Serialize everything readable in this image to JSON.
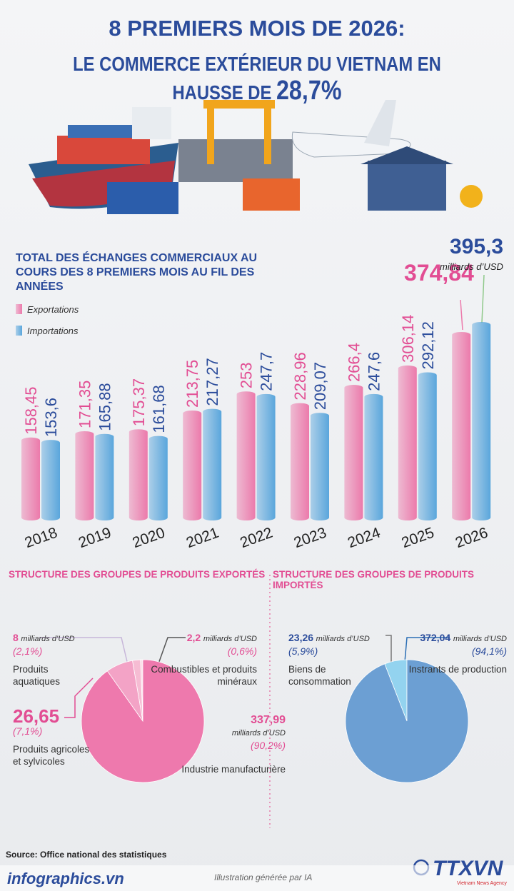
{
  "title": "8 PREMIERS MOIS DE 2026:",
  "subtitle": "LE COMMERCE EXTÉRIEUR DU VIETNAM EN HAUSSE DE",
  "highlight": "28,7%",
  "chart_data": [
    {
      "type": "bar",
      "title": "TOTAL DES ÉCHANGES COMMERCIAUX AU COURS DES 8 PREMIERS MOIS AU FIL DES ANNÉES",
      "categories": [
        "2018",
        "2019",
        "2020",
        "2021",
        "2022",
        "2023",
        "2024",
        "2025",
        "2026"
      ],
      "unit": "milliards d’USD",
      "series": [
        {
          "name": "Exportations",
          "color": "#ec7aab",
          "values": [
            158.45,
            171.35,
            175.37,
            213.75,
            253,
            228.96,
            266.4,
            306.14,
            374.84
          ],
          "value_labels": [
            "158,45",
            "171,35",
            "175,37",
            "213,75",
            "253",
            "228,96",
            "266,4",
            "306,14",
            "374,84"
          ]
        },
        {
          "name": "Importations",
          "color": "#5aa6dc",
          "values": [
            153.6,
            165.88,
            161.68,
            217.27,
            247.7,
            209.07,
            247.6,
            292.12,
            395.3
          ],
          "value_labels": [
            "153,6",
            "165,88",
            "161,68",
            "217,27",
            "247,7",
            "209,07",
            "247,6",
            "292,12",
            "395,3"
          ]
        }
      ]
    },
    {
      "type": "pie",
      "title": "STRUCTURE DES GROUPES DE PRODUITS EXPORTÉS",
      "unit": "milliards d’USD",
      "categories": [
        "Combustibles et produits minéraux",
        "Produits aquatiques",
        "Produits agricoles et sylvicoles",
        "Industrie manufacturière"
      ],
      "values": [
        0.6,
        2.1,
        7.1,
        90.2
      ],
      "value_labels": [
        "(0,6%)",
        "(2,1%)",
        "(7,1%)",
        "(90,2%)"
      ],
      "amounts": [
        2.2,
        8,
        26.65,
        337.99
      ],
      "amount_labels": [
        "2,2",
        "8",
        "26,65",
        "337,99"
      ],
      "colors": [
        "#fbdbe7",
        "#f6bcd3",
        "#f3a3c6",
        "#ee79ad"
      ]
    },
    {
      "type": "pie",
      "title": "STRUCTURE DES GROUPES DE PRODUITS IMPORTÉS",
      "unit": "milliards d’USD",
      "categories": [
        "Biens de consommation",
        "Instrants de production"
      ],
      "values": [
        5.9,
        94.1
      ],
      "value_labels": [
        "(5,9%)",
        "(94,1%)"
      ],
      "amounts": [
        23.26,
        372.04
      ],
      "amount_labels": [
        "23,26",
        "372,04"
      ],
      "colors": [
        "#93d3ef",
        "#6c9fd3"
      ]
    }
  ],
  "source": "Source: Office national des statistiques",
  "website": "infographics.vn",
  "credit": "Illustration générée par IA",
  "agency": "TTXVN",
  "agency_name": "Vietnam News Agency"
}
